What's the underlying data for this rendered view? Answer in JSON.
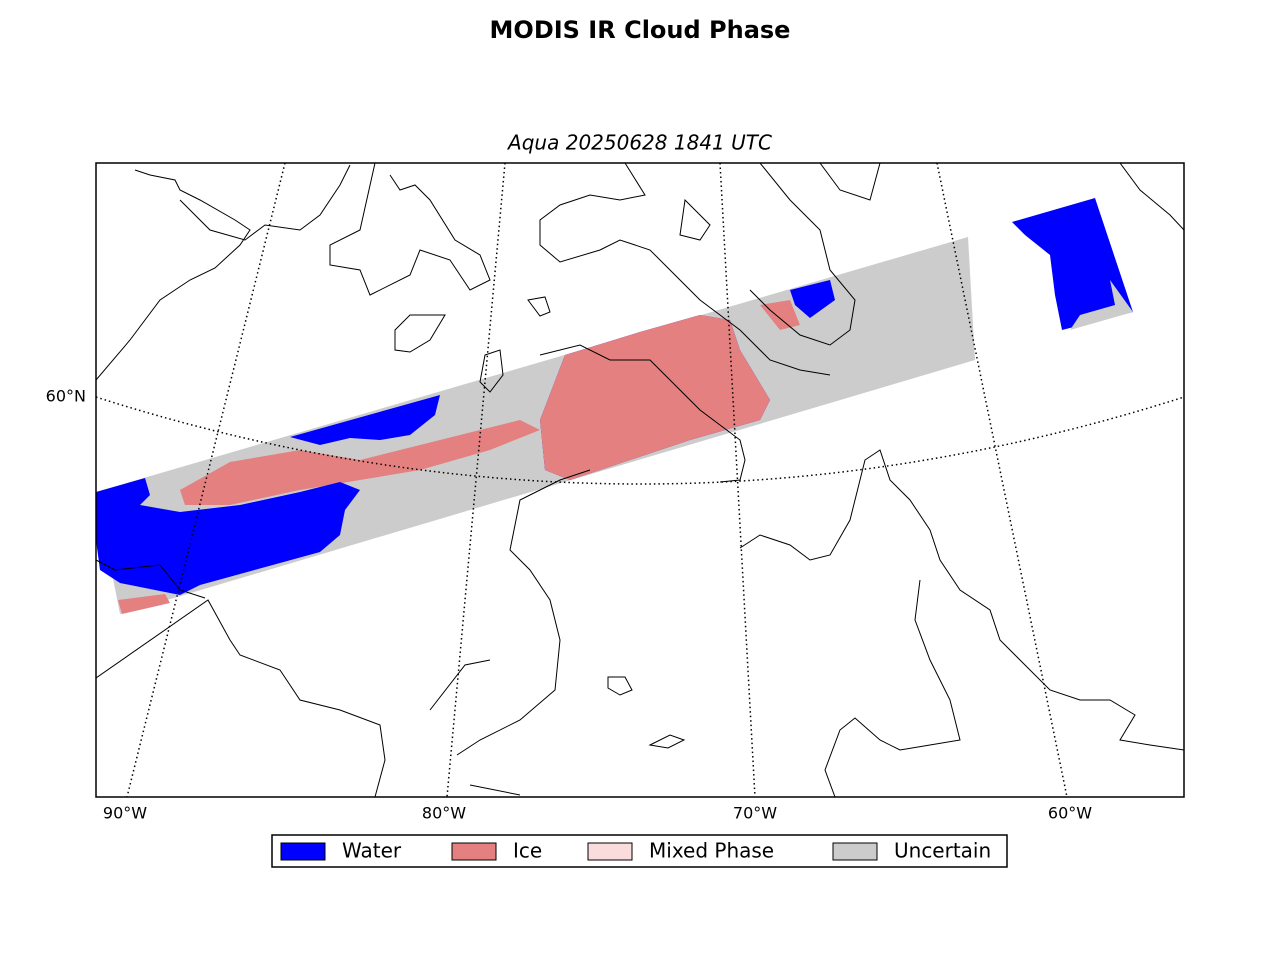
{
  "title": "MODIS IR Cloud Phase",
  "subtitle": "Aqua 20250628 1841 UTC",
  "map": {
    "lon_labels": [
      "90°W",
      "80°W",
      "70°W",
      "60°W"
    ],
    "lat_labels": [
      "60°N"
    ]
  },
  "legend": [
    {
      "label": "Water",
      "color": "#0000ff"
    },
    {
      "label": "Ice",
      "color": "#e48080"
    },
    {
      "label": "Mixed Phase",
      "color": "#fadcdc"
    },
    {
      "label": "Uncertain",
      "color": "#cccccc"
    }
  ]
}
